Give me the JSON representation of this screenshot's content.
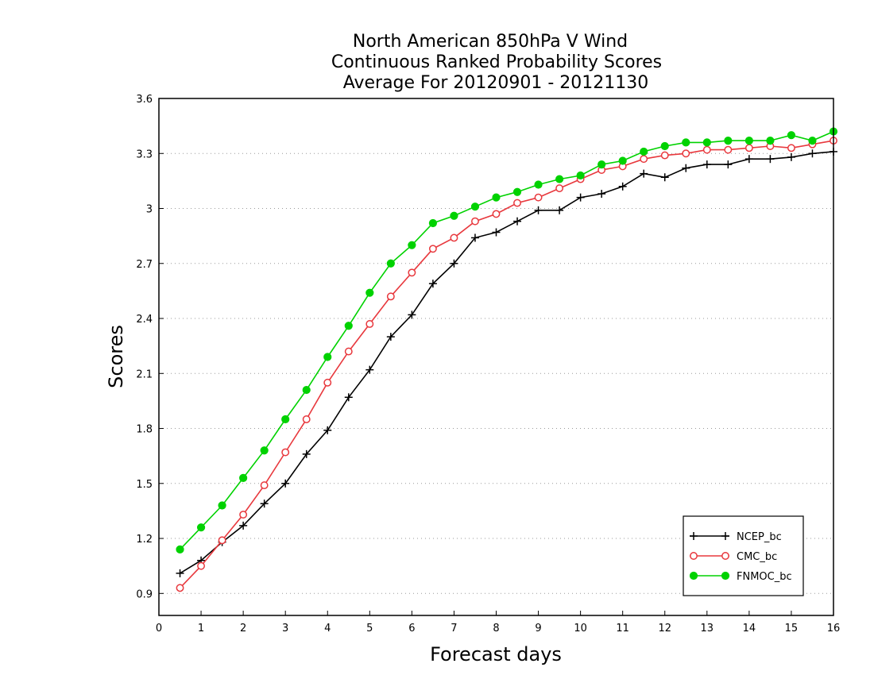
{
  "chart_data": {
    "type": "line",
    "title_lines": [
      "North American 850hPa V Wind",
      "Continuous Ranked Probability Scores",
      "Average For 20120901 - 20121130"
    ],
    "xlabel": "Forecast days",
    "ylabel": "Scores",
    "xlim": [
      0,
      16
    ],
    "ylim": [
      0.78,
      3.6
    ],
    "x_ticks": [
      0,
      1,
      2,
      3,
      4,
      5,
      6,
      7,
      8,
      9,
      10,
      11,
      12,
      13,
      14,
      15,
      16
    ],
    "y_ticks": [
      0.9,
      1.2,
      1.5,
      1.8,
      2.1,
      2.4,
      2.7,
      3,
      3.3,
      3.6
    ],
    "y_tick_labels": [
      "0.9",
      "1.2",
      "1.5",
      "1.8",
      "2.1",
      "2.4",
      "2.7",
      "3",
      "3.3",
      "3.6"
    ],
    "grid": "horizontal dotted",
    "legend_position": "bottom-right",
    "x": [
      0.5,
      1,
      1.5,
      2,
      2.5,
      3,
      3.5,
      4,
      4.5,
      5,
      5.5,
      6,
      6.5,
      7,
      7.5,
      8,
      8.5,
      9,
      9.5,
      10,
      10.5,
      11,
      11.5,
      12,
      12.5,
      13,
      13.5,
      14,
      14.5,
      15,
      15.5,
      16
    ],
    "series": [
      {
        "name": "NCEP_bc",
        "color": "#000000",
        "marker": "plus",
        "values": [
          1.01,
          1.08,
          1.18,
          1.27,
          1.39,
          1.5,
          1.66,
          1.79,
          1.97,
          2.12,
          2.3,
          2.42,
          2.59,
          2.7,
          2.84,
          2.87,
          2.93,
          2.99,
          2.99,
          3.06,
          3.08,
          3.12,
          3.19,
          3.17,
          3.22,
          3.24,
          3.24,
          3.27,
          3.27,
          3.28,
          3.3,
          3.31
        ]
      },
      {
        "name": "CMC_bc",
        "color": "#e8383d",
        "marker": "open-circle",
        "values": [
          0.93,
          1.05,
          1.19,
          1.33,
          1.49,
          1.67,
          1.85,
          2.05,
          2.22,
          2.37,
          2.52,
          2.65,
          2.78,
          2.84,
          2.93,
          2.97,
          3.03,
          3.06,
          3.11,
          3.16,
          3.21,
          3.23,
          3.27,
          3.29,
          3.3,
          3.32,
          3.32,
          3.33,
          3.34,
          3.33,
          3.35,
          3.37
        ]
      },
      {
        "name": "FNMOC_bc",
        "color": "#00d200",
        "marker": "filled-circle",
        "values": [
          1.14,
          1.26,
          1.38,
          1.53,
          1.68,
          1.85,
          2.01,
          2.19,
          2.36,
          2.54,
          2.7,
          2.8,
          2.92,
          2.96,
          3.01,
          3.06,
          3.09,
          3.13,
          3.16,
          3.18,
          3.24,
          3.26,
          3.31,
          3.34,
          3.36,
          3.36,
          3.37,
          3.37,
          3.37,
          3.4,
          3.37,
          3.42
        ]
      }
    ]
  }
}
